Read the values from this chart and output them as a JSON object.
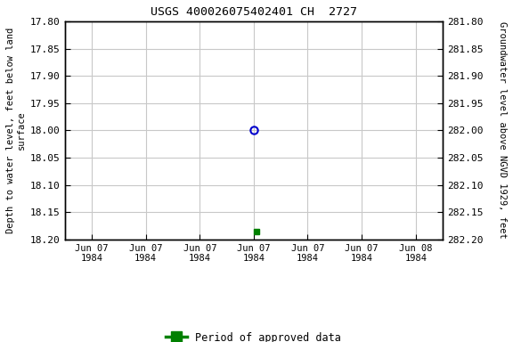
{
  "title": "USGS 400026075402401 CH  2727",
  "ylabel_left": "Depth to water level, feet below land\nsurface",
  "ylabel_right": "Groundwater level above NGVD 1929, feet",
  "ylim_left": [
    17.8,
    18.2
  ],
  "ylim_right": [
    282.2,
    281.8
  ],
  "xlim": [
    -0.5,
    6.5
  ],
  "xtick_labels": [
    "Jun 07\n1984",
    "Jun 07\n1984",
    "Jun 07\n1984",
    "Jun 07\n1984",
    "Jun 07\n1984",
    "Jun 07\n1984",
    "Jun 08\n1984"
  ],
  "xtick_positions": [
    0,
    1,
    2,
    3,
    4,
    5,
    6
  ],
  "yticks_left": [
    17.8,
    17.85,
    17.9,
    17.95,
    18.0,
    18.05,
    18.1,
    18.15,
    18.2
  ],
  "ytick_labels_left": [
    "17.80",
    "17.85",
    "17.90",
    "17.95",
    "18.00",
    "18.05",
    "18.10",
    "18.15",
    "18.20"
  ],
  "yticks_right": [
    282.2,
    282.15,
    282.1,
    282.05,
    282.0,
    281.95,
    281.9,
    281.85,
    281.8
  ],
  "ytick_labels_right": [
    "282.20",
    "282.15",
    "282.10",
    "282.05",
    "282.00",
    "281.95",
    "281.90",
    "281.85",
    "281.80"
  ],
  "point_blue_x": 3.0,
  "point_blue_y": 18.0,
  "point_green_x": 3.05,
  "point_green_y": 18.185,
  "blue_color": "#0000cc",
  "green_color": "#008000",
  "bg_color": "#ffffff",
  "grid_color": "#c8c8c8",
  "legend_label": "Period of approved data",
  "font_family": "monospace"
}
